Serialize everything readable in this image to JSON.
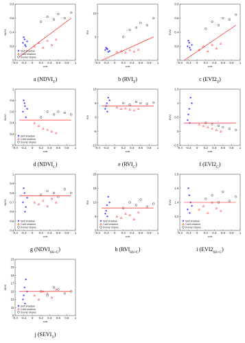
{
  "chart_data": [
    {
      "type": "scatter",
      "caption": [
        "a (NDVI",
        "T",
        ")"
      ],
      "x_label": "cosi",
      "y_label": "NDVI",
      "xlim": [
        -0.4,
        1
      ],
      "xticks": [
        -0.4,
        -0.2,
        0,
        0.2,
        0.4,
        0.6,
        0.8,
        1
      ],
      "ylim": [
        0,
        0.8
      ],
      "yticks": [
        0,
        0.2,
        0.4,
        0.6,
        0.8
      ],
      "legend": "lower-left",
      "series": [
        {
          "name": "Self shadow",
          "color": "#0000ff",
          "marker": "star",
          "x": [
            -0.22,
            -0.18,
            -0.15,
            -0.2,
            -0.12,
            -0.17
          ],
          "values": [
            0.25,
            0.3,
            0.2,
            0.33,
            0.27,
            0.22
          ]
        },
        {
          "name": "Cast shadow",
          "color": "#ff0000",
          "marker": "triangle",
          "x": [
            0.05,
            0.15,
            0.25,
            0.35,
            0.45,
            0.55
          ],
          "values": [
            0.2,
            0.25,
            0.18,
            0.28,
            0.22,
            0.3
          ]
        },
        {
          "name": "Sunny slopes",
          "color": "#000000",
          "marker": "circle",
          "x": [
            0.2,
            0.35,
            0.5,
            0.6,
            0.75,
            0.9
          ],
          "values": [
            0.55,
            0.62,
            0.58,
            0.66,
            0.6,
            0.68
          ]
        }
      ],
      "fit": {
        "color": "#ff0000",
        "x": [
          -0.3,
          0.9
        ],
        "values": [
          0.05,
          0.6
        ]
      }
    },
    {
      "type": "scatter",
      "caption": [
        "b (RVI",
        "T",
        ")"
      ],
      "x_label": "cosi",
      "y_label": "RVI",
      "xlim": [
        -0.4,
        1
      ],
      "xticks": [
        -0.4,
        -0.2,
        0,
        0.2,
        0.4,
        0.6,
        0.8,
        1
      ],
      "ylim": [
        0,
        12
      ],
      "yticks": [
        0,
        5,
        10
      ],
      "series": [
        {
          "color": "#0000ff",
          "marker": "star",
          "x": [
            -0.22,
            -0.18,
            -0.15,
            -0.2,
            -0.12,
            -0.17
          ],
          "values": [
            2.2,
            2.5,
            1.8,
            2.7,
            2,
            2.4
          ]
        },
        {
          "color": "#ff0000",
          "marker": "triangle",
          "x": [
            0.05,
            0.15,
            0.25,
            0.35,
            0.45,
            0.55
          ],
          "values": [
            1.8,
            2,
            1.7,
            2.2,
            1.9,
            2.3
          ]
        },
        {
          "color": "#000000",
          "marker": "circle",
          "x": [
            0.2,
            0.35,
            0.5,
            0.6,
            0.75,
            0.9
          ],
          "values": [
            5,
            6.5,
            7,
            8,
            7.5,
            9
          ]
        }
      ],
      "fit": {
        "color": "#ff0000",
        "x": [
          -0.3,
          0.9
        ],
        "values": [
          0,
          5
        ]
      }
    },
    {
      "type": "scatter",
      "caption": [
        "c (EVI2",
        "T",
        ")"
      ],
      "x_label": "cosi",
      "y_label": "EVI2",
      "xlim": [
        -0.4,
        1
      ],
      "xticks": [
        -0.4,
        -0.2,
        0,
        0.2,
        0.4,
        0.6,
        0.8,
        1
      ],
      "ylim": [
        0,
        0.8
      ],
      "yticks": [
        0,
        0.2,
        0.4,
        0.6,
        0.8
      ],
      "series": [
        {
          "color": "#0000ff",
          "marker": "star",
          "x": [
            -0.22,
            -0.18,
            -0.15,
            -0.2,
            -0.12,
            -0.17
          ],
          "values": [
            0.2,
            0.25,
            0.15,
            0.28,
            0.22,
            0.18
          ]
        },
        {
          "color": "#ff0000",
          "marker": "triangle",
          "x": [
            0.05,
            0.15,
            0.25,
            0.35,
            0.45,
            0.55
          ],
          "values": [
            0.15,
            0.2,
            0.13,
            0.22,
            0.17,
            0.24
          ]
        },
        {
          "color": "#000000",
          "marker": "circle",
          "x": [
            0.2,
            0.35,
            0.5,
            0.6,
            0.75,
            0.9
          ],
          "values": [
            0.45,
            0.55,
            0.5,
            0.6,
            0.58,
            0.65
          ]
        }
      ],
      "fit": {
        "color": "#ff0000",
        "x": [
          -0.3,
          0.9
        ],
        "values": [
          0,
          0.5
        ]
      }
    },
    {
      "type": "scatter",
      "caption": [
        "d (NDVI",
        "C",
        ")"
      ],
      "x_label": "cosi",
      "y_label": "NDVI",
      "xlim": [
        -0.4,
        1
      ],
      "xticks": [
        -0.4,
        -0.2,
        0,
        0.2,
        0.4,
        0.6,
        0.8,
        1
      ],
      "ylim": [
        0,
        1
      ],
      "yticks": [
        0,
        0.2,
        0.4,
        0.6,
        0.8,
        1
      ],
      "legend": "lower-left",
      "series": [
        {
          "name": "Self shadow",
          "color": "#0000ff",
          "marker": "star",
          "x": [
            -0.22,
            -0.18,
            -0.15,
            -0.2,
            -0.12,
            -0.17
          ],
          "values": [
            0.6,
            0.75,
            0.5,
            0.8,
            0.65,
            0.7
          ]
        },
        {
          "name": "Cast shadow",
          "color": "#ff0000",
          "marker": "triangle",
          "x": [
            0.05,
            0.15,
            0.25,
            0.35,
            0.45,
            0.55
          ],
          "values": [
            0.4,
            0.35,
            0.3,
            0.28,
            0.25,
            0.22
          ]
        },
        {
          "name": "Sunny slopes",
          "color": "#000000",
          "marker": "circle",
          "x": [
            0.2,
            0.35,
            0.5,
            0.6,
            0.75,
            0.9
          ],
          "values": [
            0.5,
            0.6,
            0.55,
            0.6,
            0.58,
            0.55
          ]
        }
      ],
      "fit": {
        "color": "#ff0000",
        "x": [
          -0.3,
          0.9
        ],
        "values": [
          0.45,
          0.45
        ]
      }
    },
    {
      "type": "scatter",
      "caption": [
        "e (RVI",
        "C",
        ")"
      ],
      "x_label": "cosi",
      "y_label": "RVI",
      "xlim": [
        -0.4,
        1
      ],
      "xticks": [
        -0.4,
        -0.2,
        0,
        0.2,
        0.4,
        0.6,
        0.8,
        1
      ],
      "ylim": [
        -10,
        10
      ],
      "yticks": [
        -10,
        -5,
        0,
        5,
        10
      ],
      "series": [
        {
          "color": "#0000ff",
          "marker": "star",
          "x": [
            -0.22,
            -0.18,
            -0.15,
            -0.2,
            -0.12,
            -0.17
          ],
          "values": [
            3,
            5,
            7,
            4,
            6,
            2
          ]
        },
        {
          "color": "#ff0000",
          "marker": "triangle",
          "x": [
            0.05,
            0.15,
            0.25,
            0.35,
            0.45,
            0.55
          ],
          "values": [
            3.5,
            3,
            3.2,
            2.8,
            2.5,
            3
          ]
        },
        {
          "color": "#000000",
          "marker": "circle",
          "x": [
            0.2,
            0.35,
            0.5,
            0.6,
            0.75,
            0.9
          ],
          "values": [
            5,
            4.5,
            5.5,
            5,
            4.8,
            5.2
          ]
        }
      ],
      "fit": {
        "color": "#ff0000",
        "x": [
          -0.3,
          0.9
        ],
        "values": [
          4,
          4
        ]
      }
    },
    {
      "type": "scatter",
      "caption": [
        "f (EVI2",
        "C",
        ")"
      ],
      "x_label": "cosi",
      "y_label": "EVI2",
      "xlim": [
        -0.4,
        1
      ],
      "xticks": [
        -0.4,
        -0.2,
        0,
        0.2,
        0.4,
        0.6,
        0.8,
        1
      ],
      "ylim": [
        -0.5,
        1.5
      ],
      "yticks": [
        -0.5,
        0,
        0.5,
        1,
        1.5
      ],
      "series": [
        {
          "color": "#0000ff",
          "marker": "star",
          "x": [
            -0.22,
            -0.18,
            -0.15,
            -0.2,
            -0.12,
            -0.17
          ],
          "values": [
            0.4,
            0.8,
            1.2,
            0.6,
            1,
            0.3
          ]
        },
        {
          "color": "#ff0000",
          "marker": "triangle",
          "x": [
            0.05,
            0.15,
            0.25,
            0.35,
            0.45,
            0.55
          ],
          "values": [
            0.25,
            0.2,
            0.15,
            0.1,
            0.05,
            0
          ]
        },
        {
          "color": "#000000",
          "marker": "circle",
          "x": [
            0.2,
            0.35,
            0.5,
            0.6,
            0.75,
            0.9
          ],
          "values": [
            0.3,
            0.25,
            0.2,
            0.15,
            0.1,
            0.05
          ]
        }
      ],
      "fit": {
        "color": "#ff0000",
        "x": [
          -0.3,
          0.9
        ],
        "values": [
          0.3,
          0.3
        ]
      }
    },
    {
      "type": "scatter",
      "caption": [
        "g (NDVI",
        "6S+C",
        ")"
      ],
      "x_label": "cosi",
      "y_label": "NDVI",
      "xlim": [
        -0.4,
        1
      ],
      "xticks": [
        -0.4,
        -0.2,
        0,
        0.2,
        0.4,
        0.6,
        0.8,
        1
      ],
      "ylim": [
        0.4,
        1
      ],
      "yticks": [
        0.4,
        0.5,
        0.6,
        0.7,
        0.8,
        0.9,
        1
      ],
      "legend": "lower-left",
      "series": [
        {
          "name": "Self shadow",
          "color": "#0000ff",
          "marker": "star",
          "x": [
            -0.22,
            -0.18,
            -0.15,
            -0.2,
            -0.12,
            -0.17
          ],
          "values": [
            0.7,
            0.8,
            0.65,
            0.85,
            0.75,
            0.6
          ]
        },
        {
          "name": "Cast shadow",
          "color": "#ff0000",
          "marker": "triangle",
          "x": [
            0.05,
            0.15,
            0.25,
            0.35,
            0.45,
            0.55
          ],
          "values": [
            0.7,
            0.68,
            0.72,
            0.66,
            0.74,
            0.7
          ]
        },
        {
          "name": "Sunny slopes",
          "color": "#000000",
          "marker": "circle",
          "x": [
            0.2,
            0.35,
            0.5,
            0.6,
            0.75,
            0.9
          ],
          "values": [
            0.78,
            0.82,
            0.8,
            0.76,
            0.84,
            0.8
          ]
        }
      ],
      "fit": {
        "color": "#ff0000",
        "x": [
          -0.3,
          0.9
        ],
        "values": [
          0.77,
          0.77
        ]
      }
    },
    {
      "type": "scatter",
      "caption": [
        "h (RVI",
        "6S+C",
        ")"
      ],
      "x_label": "cosi",
      "y_label": "RVI",
      "xlim": [
        -0.4,
        1
      ],
      "xticks": [
        -0.4,
        -0.2,
        0,
        0.2,
        0.4,
        0.6,
        0.8,
        1
      ],
      "ylim": [
        0,
        20
      ],
      "yticks": [
        0,
        5,
        10,
        15,
        20
      ],
      "legend": "lower-left",
      "series": [
        {
          "name": "Self shadow",
          "color": "#0000ff",
          "marker": "star",
          "x": [
            -0.22,
            -0.18,
            -0.15,
            -0.2,
            -0.12,
            -0.17
          ],
          "values": [
            6,
            9,
            12,
            7,
            10,
            5
          ]
        },
        {
          "name": "Cast shadow",
          "color": "#ff0000",
          "marker": "triangle",
          "x": [
            0.05,
            0.15,
            0.25,
            0.35,
            0.45,
            0.55
          ],
          "values": [
            5,
            4.5,
            6,
            5.5,
            4,
            6.5
          ]
        },
        {
          "name": "Sunny slopes",
          "color": "#000000",
          "marker": "circle",
          "x": [
            0.2,
            0.35,
            0.5,
            0.6,
            0.75,
            0.9
          ],
          "values": [
            8,
            10,
            9,
            11,
            8.5,
            9.5
          ]
        }
      ],
      "fit": {
        "color": "#ff0000",
        "x": [
          -0.3,
          0.9
        ],
        "values": [
          8,
          8
        ]
      }
    },
    {
      "type": "scatter",
      "caption": [
        "i (EVI2",
        "6S+C",
        ")"
      ],
      "x_label": "cosi",
      "y_label": "EVI2",
      "xlim": [
        -0.4,
        1
      ],
      "xticks": [
        -0.4,
        -0.2,
        0,
        0.2,
        0.4,
        0.6,
        0.8,
        1
      ],
      "ylim": [
        1,
        1.8
      ],
      "yticks": [
        1,
        1.2,
        1.4,
        1.6,
        1.8
      ],
      "legend": "lower-left",
      "series": [
        {
          "name": "Self shadow",
          "color": "#0000ff",
          "marker": "star",
          "x": [
            -0.22,
            -0.18,
            -0.15,
            -0.2,
            -0.12,
            -0.17
          ],
          "values": [
            1.3,
            1.5,
            1.4,
            1.6,
            1.35,
            1.25
          ]
        },
        {
          "name": "Cast shadow",
          "color": "#ff0000",
          "marker": "triangle",
          "x": [
            0.05,
            0.15,
            0.25,
            0.35,
            0.45,
            0.55
          ],
          "values": [
            1.3,
            1.35,
            1.25,
            1.4,
            1.32,
            1.28
          ]
        },
        {
          "name": "Sunny slopes",
          "color": "#000000",
          "marker": "circle",
          "x": [
            0.2,
            0.35,
            0.5,
            0.6,
            0.75,
            0.9
          ],
          "values": [
            1.45,
            1.5,
            1.4,
            1.55,
            1.42,
            1.48
          ]
        }
      ],
      "fit": {
        "color": "#ff0000",
        "x": [
          -0.3,
          0.9
        ],
        "values": [
          1.4,
          1.4
        ]
      }
    },
    {
      "type": "scatter",
      "caption": [
        "j (SEVI",
        "T",
        ")"
      ],
      "x_label": "cosi",
      "y_label": "SEVI",
      "xlim": [
        -0.4,
        1
      ],
      "xticks": [
        -0.4,
        -0.2,
        0,
        0.2,
        0.4,
        0.6,
        0.8,
        1
      ],
      "ylim": [
        9,
        23
      ],
      "yticks": [
        9,
        11,
        13,
        15,
        17,
        19,
        21,
        23
      ],
      "legend": "lower-left",
      "series": [
        {
          "name": "Self shadow",
          "color": "#0000ff",
          "marker": "star",
          "x": [
            -0.22,
            -0.18,
            -0.15,
            -0.2,
            -0.12,
            -0.17
          ],
          "values": [
            13,
            16,
            18,
            14,
            15,
            12
          ]
        },
        {
          "name": "Cast shadow",
          "color": "#ff0000",
          "marker": "triangle",
          "x": [
            0.05,
            0.15,
            0.25,
            0.35,
            0.45,
            0.55
          ],
          "values": [
            14,
            13,
            15,
            14.5,
            13.5,
            15.5
          ]
        },
        {
          "name": "Sunny slopes",
          "color": "#000000",
          "marker": "circle",
          "x": [
            0.2,
            0.35,
            0.5,
            0.6,
            0.75,
            0.9
          ],
          "values": [
            15,
            14,
            16,
            15.5,
            14.5,
            15
          ]
        }
      ],
      "fit": {
        "color": "#ff0000",
        "x": [
          -0.3,
          0.9
        ],
        "values": [
          15,
          15
        ]
      }
    }
  ]
}
